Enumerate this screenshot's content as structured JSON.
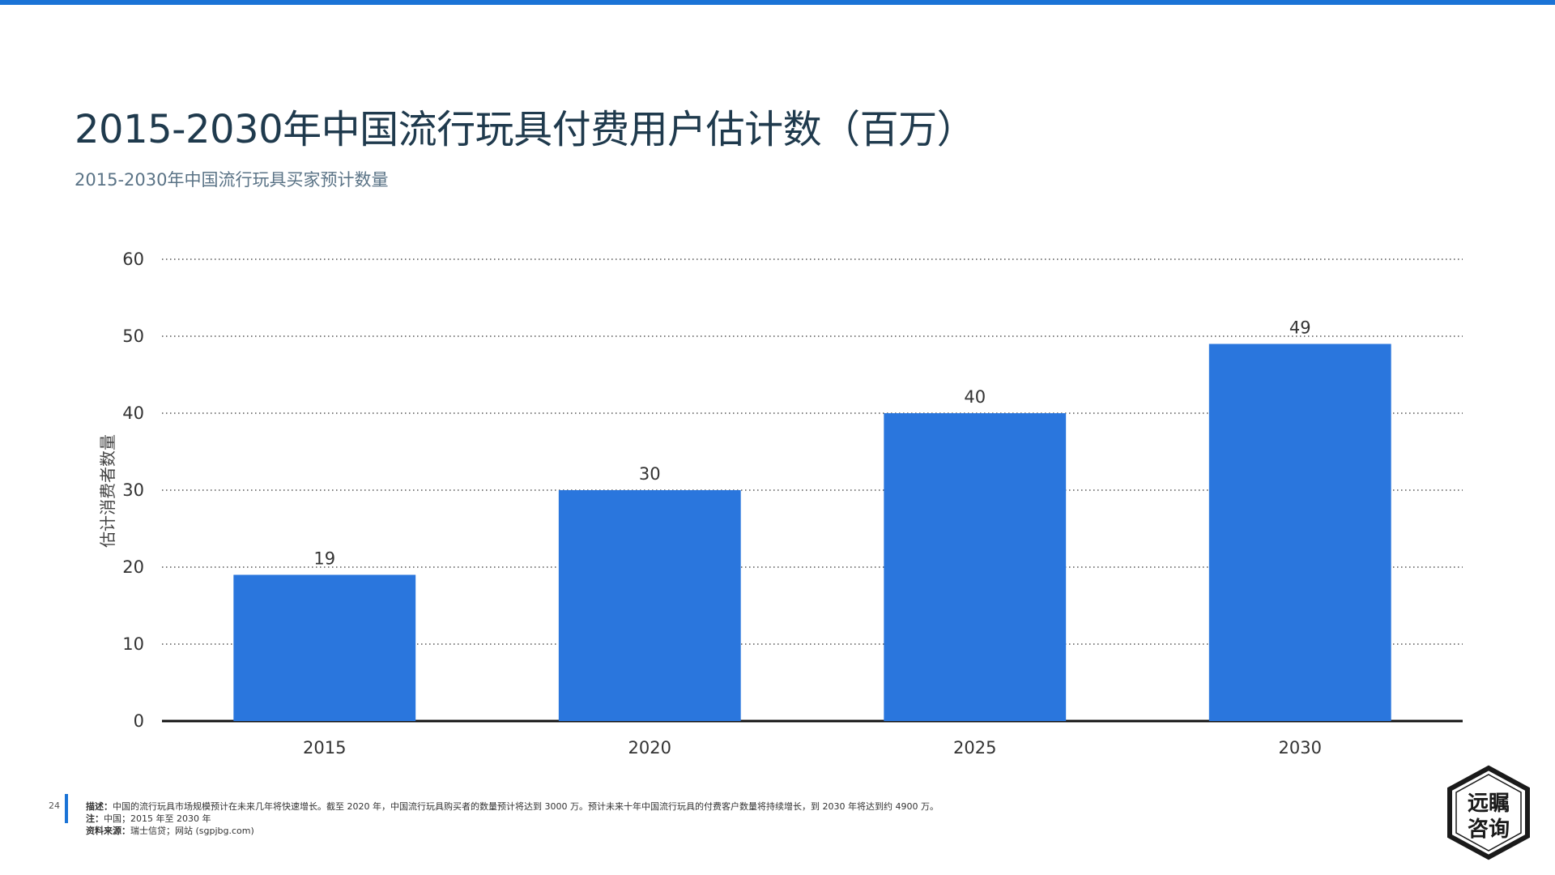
{
  "page": {
    "title": "2015-2030年中国流行玩具付费用户估计数（百万）",
    "subtitle": "2015-2030年中国流行玩具买家预计数量",
    "page_number": "24",
    "accent_color": "#1a73d6"
  },
  "footer": {
    "desc_label": "描述：",
    "desc_text": "中国的流行玩具市场规模预计在未来几年将快速增长。截至 2020 年，中国流行玩具购买者的数量预计将达到 3000 万。预计未来十年中国流行玩具的付费客户数量将持续增长，到 2030 年将达到约 4900 万。",
    "note_label": "注：",
    "note_text": "中国；2015 年至 2030 年",
    "source_label": "资料来源：",
    "source_text": "瑞士信贷；网站 (sgpjbg.com)"
  },
  "logo": {
    "text_line1": "远瞩",
    "text_line2": "咨询"
  },
  "chart_data": {
    "type": "bar",
    "categories": [
      "2015",
      "2020",
      "2025",
      "2030"
    ],
    "values": [
      19,
      30,
      40,
      49
    ],
    "data_labels": [
      "19",
      "30",
      "40",
      "49"
    ],
    "ylabel": "估计消费者数量",
    "xlabel": "",
    "ylim": [
      0,
      60
    ],
    "yticks": [
      0,
      10,
      20,
      30,
      40,
      50,
      60
    ],
    "grid": true,
    "grid_style": "dotted",
    "bar_color": "#2a76dd",
    "legend": "none"
  }
}
